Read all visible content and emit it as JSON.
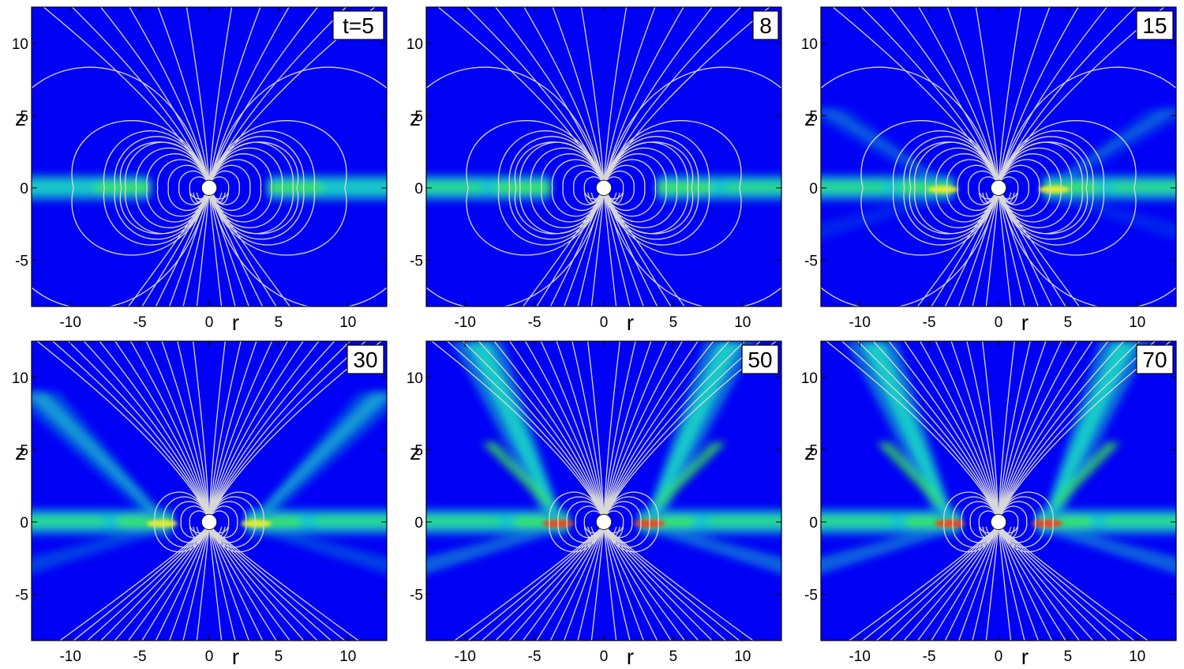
{
  "figure": {
    "panels": [
      {
        "time_label": "t=5"
      },
      {
        "time_label": "8"
      },
      {
        "time_label": "15"
      },
      {
        "time_label": "30"
      },
      {
        "time_label": "50"
      },
      {
        "time_label": "70"
      }
    ]
  },
  "colors": {
    "background": "#0000f5",
    "field_lines": "#d8d8d8",
    "star": "#ffffff",
    "disk_low": "#0a7bd9",
    "disk_mid": "#19d6c8",
    "disk_high": "#39e84a",
    "disk_peak": "#ff3a1a"
  },
  "chart_data": [
    {
      "type": "heatmap",
      "time_label": "t=5",
      "xlabel": "r",
      "ylabel": "z",
      "xlim": [
        -12.8,
        12.8
      ],
      "ylim": [
        -8.2,
        12.5
      ],
      "xticks": [
        -10,
        -5,
        0,
        5,
        10
      ],
      "yticks": [
        -5,
        0,
        5,
        10
      ],
      "tick_labels_x": [
        "-10",
        "-5",
        "0",
        "5",
        "10"
      ],
      "tick_labels_y": [
        "-5",
        "0",
        "5",
        "10"
      ],
      "disk_inner_edge_r": 4.2,
      "outflow": "none",
      "field_lines": "closed dipole loops, inflated outer loops"
    },
    {
      "type": "heatmap",
      "time_label": "8",
      "xlabel": "r",
      "ylabel": "z",
      "xlim": [
        -12.8,
        12.8
      ],
      "ylim": [
        -8.2,
        12.5
      ],
      "xticks": [
        -10,
        -5,
        0,
        5,
        10
      ],
      "yticks": [
        -5,
        0,
        5,
        10
      ],
      "tick_labels_x": [
        "-10",
        "-5",
        "0",
        "5",
        "10"
      ],
      "tick_labels_y": [
        "-5",
        "0",
        "5",
        "10"
      ],
      "disk_inner_edge_r": 3.8,
      "outflow": "none",
      "field_lines": "closed dipole loops, inflated outer loops"
    },
    {
      "type": "heatmap",
      "time_label": "15",
      "xlabel": "r",
      "ylabel": "z",
      "xlim": [
        -12.8,
        12.8
      ],
      "ylim": [
        -8.2,
        12.5
      ],
      "xticks": [
        -10,
        -5,
        0,
        5,
        10
      ],
      "yticks": [
        -5,
        0,
        5,
        10
      ],
      "tick_labels_x": [
        "-10",
        "-5",
        "0",
        "5",
        "10"
      ],
      "tick_labels_y": [
        "-5",
        "0",
        "5",
        "10"
      ],
      "disk_inner_edge_r": 3.2,
      "outflow": "weak",
      "field_lines": "inflated butterfly loops"
    },
    {
      "type": "heatmap",
      "time_label": "30",
      "xlabel": "r",
      "ylabel": "z",
      "xlim": [
        -12.8,
        12.8
      ],
      "ylim": [
        -8.2,
        12.5
      ],
      "xticks": [
        -10,
        -5,
        0,
        5,
        10
      ],
      "yticks": [
        -5,
        0,
        5,
        10
      ],
      "tick_labels_x": [
        "-10",
        "-5",
        "0",
        "5",
        "10"
      ],
      "tick_labels_y": [
        "-5",
        "0",
        "5",
        "10"
      ],
      "disk_inner_edge_r": 2.6,
      "outflow": "conical",
      "field_lines": "open field lines, closed inner loops"
    },
    {
      "type": "heatmap",
      "time_label": "50",
      "xlabel": "r",
      "ylabel": "z",
      "xlim": [
        -12.8,
        12.8
      ],
      "ylim": [
        -8.2,
        12.5
      ],
      "xticks": [
        -10,
        -5,
        0,
        5,
        10
      ],
      "yticks": [
        -5,
        0,
        5,
        10
      ],
      "tick_labels_x": [
        "-10",
        "-5",
        "0",
        "5",
        "10"
      ],
      "tick_labels_y": [
        "-5",
        "0",
        "5",
        "10"
      ],
      "disk_inner_edge_r": 2.5,
      "outflow": "strong conical",
      "field_lines": "open field lines, closed inner loops"
    },
    {
      "type": "heatmap",
      "time_label": "70",
      "xlabel": "r",
      "ylabel": "z",
      "xlim": [
        -12.8,
        12.8
      ],
      "ylim": [
        -8.2,
        12.5
      ],
      "xticks": [
        -10,
        -5,
        0,
        5,
        10
      ],
      "yticks": [
        -5,
        0,
        5,
        10
      ],
      "tick_labels_x": [
        "-10",
        "-5",
        "0",
        "5",
        "10"
      ],
      "tick_labels_y": [
        "-5",
        "0",
        "5",
        "10"
      ],
      "disk_inner_edge_r": 2.7,
      "outflow": "strong conical",
      "field_lines": "open field lines, closed inner loops"
    }
  ]
}
